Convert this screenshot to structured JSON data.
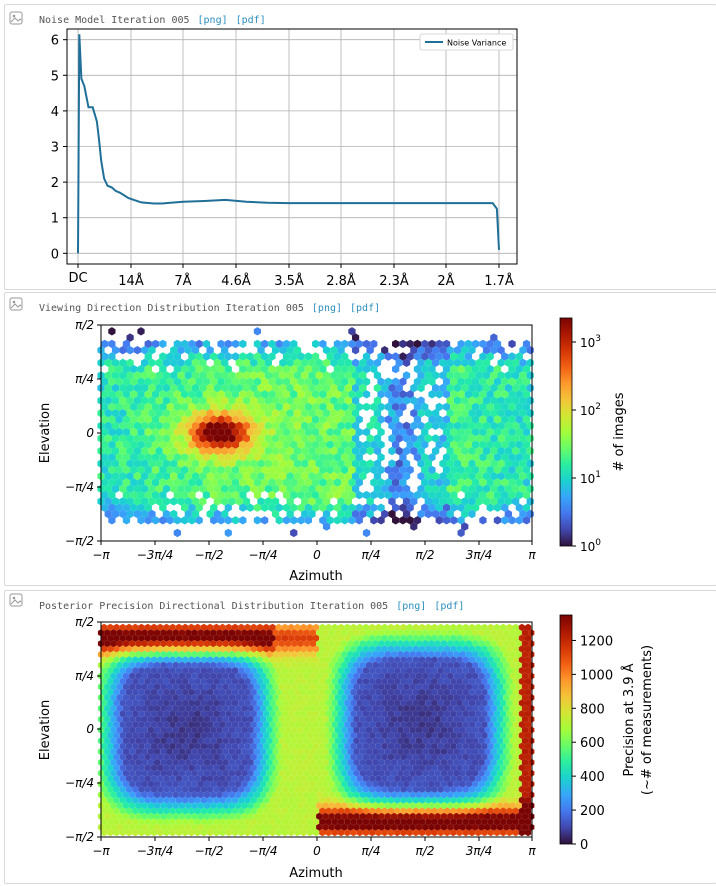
{
  "panels": [
    {
      "title": "Noise Model Iteration 005",
      "links": [
        "[png]",
        "[pdf]"
      ]
    },
    {
      "title": "Viewing Direction Distribution Iteration 005",
      "links": [
        "[png]",
        "[pdf]"
      ]
    },
    {
      "title": "Posterior Precision Directional Distribution Iteration 005",
      "links": [
        "[png]",
        "[pdf]"
      ]
    }
  ],
  "chart_data": [
    {
      "type": "line",
      "title": "",
      "xlabel": "",
      "ylabel": "",
      "ylim": [
        -0.3,
        6.3
      ],
      "grid": true,
      "legend": "top-right",
      "yticks": [
        "0",
        "1",
        "2",
        "3",
        "4",
        "5",
        "6"
      ],
      "xticks": [
        "DC",
        "14Å",
        "7Å",
        "4.6Å",
        "3.5Å",
        "2.8Å",
        "2.3Å",
        "2Å",
        "1.7Å"
      ],
      "series": [
        {
          "name": "Noise Variance",
          "color": "#1f6f99",
          "x": [
            0,
            0.003,
            0.008,
            0.015,
            0.025,
            0.035,
            0.045,
            0.05,
            0.055,
            0.062,
            0.07,
            0.08,
            0.09,
            0.1,
            0.12,
            0.15,
            0.18,
            0.2,
            0.22,
            0.25,
            0.3,
            0.35,
            0.4,
            0.45,
            0.5,
            0.55,
            0.6,
            0.65,
            0.7,
            0.75,
            0.8,
            0.85,
            0.9,
            0.95,
            0.97,
            0.985,
            0.995,
            1.0
          ],
          "y": [
            0,
            6.15,
            4.9,
            4.7,
            4.1,
            4.1,
            3.7,
            3.2,
            2.6,
            2.1,
            1.9,
            1.85,
            1.75,
            1.7,
            1.55,
            1.43,
            1.4,
            1.4,
            1.42,
            1.45,
            1.47,
            1.5,
            1.45,
            1.42,
            1.41,
            1.41,
            1.41,
            1.41,
            1.41,
            1.41,
            1.41,
            1.41,
            1.41,
            1.41,
            1.41,
            1.41,
            1.25,
            0.1
          ]
        }
      ]
    },
    {
      "type": "heatmap",
      "title": "",
      "xlabel": "Azimuth",
      "ylabel": "Elevation",
      "xticks": [
        "−π",
        "−3π/4",
        "−π/2",
        "−π/4",
        "0",
        "π/4",
        "π/2",
        "3π/4",
        "π"
      ],
      "yticks": [
        "−π/2",
        "−π/4",
        "0",
        "π/4",
        "π/2"
      ],
      "colorbar_label": "# of images",
      "colorbar_ticks": [
        "10",
        "10",
        "10",
        "10"
      ],
      "colorbar_exponents": [
        "0",
        "1",
        "2",
        "3"
      ],
      "scale": "log",
      "peak": {
        "azimuth": "−π/2",
        "elevation": "0"
      }
    },
    {
      "type": "heatmap",
      "title": "",
      "xlabel": "Azimuth",
      "ylabel": "Elevation",
      "xticks": [
        "−π",
        "−3π/4",
        "−π/2",
        "−π/4",
        "0",
        "π/4",
        "π/2",
        "3π/4",
        "π"
      ],
      "yticks": [
        "−π/2",
        "−π/4",
        "0",
        "π/4",
        "π/2"
      ],
      "colorbar_label": "Precision at 3.9 Å",
      "colorbar_label2": "(~# of measurements)",
      "colorbar_ticks": [
        "0",
        "200",
        "400",
        "600",
        "800",
        "1000",
        "1200"
      ],
      "zlim": [
        0,
        1350
      ]
    }
  ]
}
